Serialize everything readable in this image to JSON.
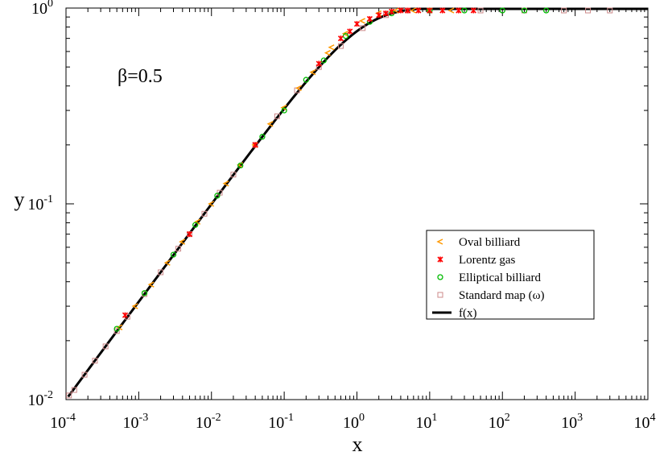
{
  "chart_data": {
    "type": "scatter",
    "xscale": "log",
    "yscale": "log",
    "xlim_exp": [
      -4,
      4
    ],
    "ylim_exp": [
      -2,
      0
    ],
    "xlabel": "x",
    "ylabel": "y",
    "annotation": "β=0.5",
    "x_ticks": [
      {
        "base": "10",
        "exp": "-4"
      },
      {
        "base": "10",
        "exp": "-3"
      },
      {
        "base": "10",
        "exp": "-2"
      },
      {
        "base": "10",
        "exp": "-1"
      },
      {
        "base": "10",
        "exp": "0"
      },
      {
        "base": "10",
        "exp": "1"
      },
      {
        "base": "10",
        "exp": "2"
      },
      {
        "base": "10",
        "exp": "3"
      },
      {
        "base": "10",
        "exp": "4"
      }
    ],
    "y_ticks": [
      {
        "base": "10",
        "exp": "-2"
      },
      {
        "base": "10",
        "exp": "-1"
      },
      {
        "base": "10",
        "exp": "0"
      }
    ],
    "curve": {
      "name": "f(x)",
      "beta": 0.5,
      "formula": "y = tanh(x^beta)",
      "color": "#000000"
    },
    "series": [
      {
        "name": "Oval billiard",
        "marker": "triangle-left",
        "color": "#ff9900",
        "points": [
          [
            0.00055,
            0.0234
          ],
          [
            0.0009,
            0.03
          ],
          [
            0.0015,
            0.0387
          ],
          [
            0.0025,
            0.05
          ],
          [
            0.004,
            0.064
          ],
          [
            0.0065,
            0.081
          ],
          [
            0.01,
            0.1
          ],
          [
            0.016,
            0.127
          ],
          [
            0.025,
            0.158
          ],
          [
            0.04,
            0.2
          ],
          [
            0.065,
            0.256
          ],
          [
            0.1,
            0.31
          ],
          [
            0.16,
            0.39
          ],
          [
            0.25,
            0.47
          ],
          [
            0.4,
            0.59
          ],
          [
            0.45,
            0.63
          ],
          [
            0.7,
            0.74
          ],
          [
            1.2,
            0.86
          ],
          [
            2,
            0.94
          ],
          [
            3.5,
            0.98
          ],
          [
            6,
            0.99
          ],
          [
            10,
            1.0
          ],
          [
            20,
            1.0
          ]
        ]
      },
      {
        "name": "Lorentz gas",
        "marker": "star",
        "color": "#ff0000",
        "points": [
          [
            0.00065,
            0.027
          ],
          [
            0.005,
            0.07
          ],
          [
            0.04,
            0.2
          ],
          [
            0.3,
            0.52
          ],
          [
            0.6,
            0.7
          ],
          [
            0.8,
            0.76
          ],
          [
            1,
            0.83
          ],
          [
            1.5,
            0.88
          ],
          [
            2,
            0.92
          ],
          [
            2.5,
            0.94
          ],
          [
            3,
            0.96
          ],
          [
            4,
            0.98
          ],
          [
            5,
            0.99
          ],
          [
            7,
            1.0
          ],
          [
            10,
            1.0
          ],
          [
            15,
            1.0
          ],
          [
            25,
            1.0
          ],
          [
            40,
            1.0
          ]
        ]
      },
      {
        "name": "Elliptical billiard",
        "marker": "circle",
        "color": "#00bb00",
        "points": [
          [
            0.0005,
            0.023
          ],
          [
            0.0012,
            0.035
          ],
          [
            0.003,
            0.055
          ],
          [
            0.006,
            0.078
          ],
          [
            0.012,
            0.11
          ],
          [
            0.025,
            0.157
          ],
          [
            0.05,
            0.22
          ],
          [
            0.1,
            0.3
          ],
          [
            0.2,
            0.43
          ],
          [
            0.35,
            0.54
          ],
          [
            0.7,
            0.72
          ],
          [
            1.5,
            0.85
          ],
          [
            3,
            0.94
          ],
          [
            10,
            0.99
          ],
          [
            30,
            1.0
          ],
          [
            100,
            1.0
          ],
          [
            200,
            1.0
          ],
          [
            400,
            1.0
          ]
        ]
      },
      {
        "name": "Standard map (ω)",
        "marker": "square",
        "color": "#cc8888",
        "points": [
          [
            0.00011,
            0.0105
          ],
          [
            0.00013,
            0.0112
          ],
          [
            0.00018,
            0.0134
          ],
          [
            0.00025,
            0.0158
          ],
          [
            0.00035,
            0.0187
          ],
          [
            0.0005,
            0.0224
          ],
          [
            0.0007,
            0.0265
          ],
          [
            0.0012,
            0.0346
          ],
          [
            0.002,
            0.0447
          ],
          [
            0.0035,
            0.059
          ],
          [
            0.005,
            0.07
          ],
          [
            0.008,
            0.089
          ],
          [
            0.013,
            0.114
          ],
          [
            0.02,
            0.141
          ],
          [
            0.04,
            0.2
          ],
          [
            0.08,
            0.28
          ],
          [
            0.15,
            0.38
          ],
          [
            0.3,
            0.5
          ],
          [
            0.6,
            0.64
          ],
          [
            1.2,
            0.79
          ],
          [
            2.5,
            0.92
          ],
          [
            5,
            0.98
          ],
          [
            10,
            1.0
          ],
          [
            50,
            1.0
          ],
          [
            200,
            1.0
          ],
          [
            700,
            1.0
          ],
          [
            1500,
            1.0
          ],
          [
            3000,
            1.0
          ]
        ]
      }
    ],
    "legend": {
      "position": "center-right",
      "entries": [
        "Oval billiard",
        "Lorentz gas",
        "Elliptical billiard",
        "Standard map (ω)",
        "f(x)"
      ]
    }
  }
}
